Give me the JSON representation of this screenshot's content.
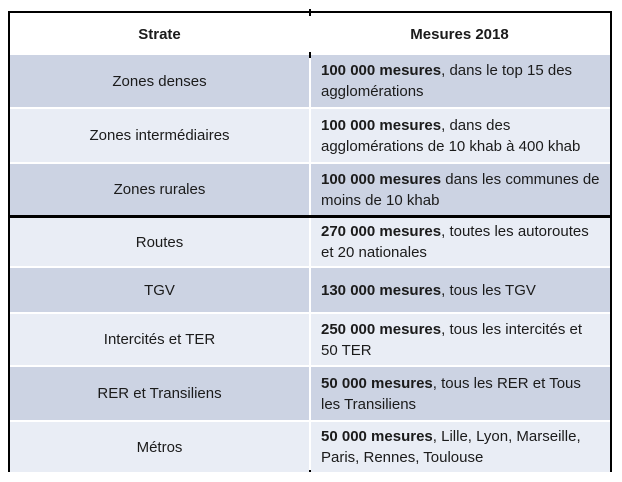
{
  "table": {
    "headers": {
      "strate": "Strate",
      "mesures": "Mesures 2018"
    },
    "rows": [
      {
        "strate": "Zones denses",
        "bold": "100 000 mesures",
        "rest": ", dans le top 15 des agglomérations"
      },
      {
        "strate": "Zones intermédiaires",
        "bold": "100 000 mesures",
        "rest": ", dans des agglomérations de 10 khab à 400 khab"
      },
      {
        "strate": "Zones rurales",
        "bold": "100 000 mesures",
        "rest": " dans les communes de moins de 10 khab"
      },
      {
        "strate": "Routes",
        "bold": "270 000 mesures",
        "rest": ", toutes les autoroutes et 20 nationales"
      },
      {
        "strate": "TGV",
        "bold": "130 000 mesures",
        "rest": ", tous les TGV"
      },
      {
        "strate": "Intercités et TER",
        "bold": "250 000 mesures",
        "rest": ", tous les intercités et 50 TER"
      },
      {
        "strate": "RER et Transiliens",
        "bold": "50 000 mesures",
        "rest": ", tous les RER et Tous les Transiliens"
      },
      {
        "strate": "Métros",
        "bold": "50 000 mesures",
        "rest": ", Lille, Lyon, Marseille, Paris, Rennes, Toulouse"
      }
    ],
    "colors": {
      "band_dark": "#ccd3e3",
      "band_light": "#e9edf5",
      "header_bg": "#ffffff",
      "border": "#000000",
      "text": "#1b1b1b"
    }
  }
}
